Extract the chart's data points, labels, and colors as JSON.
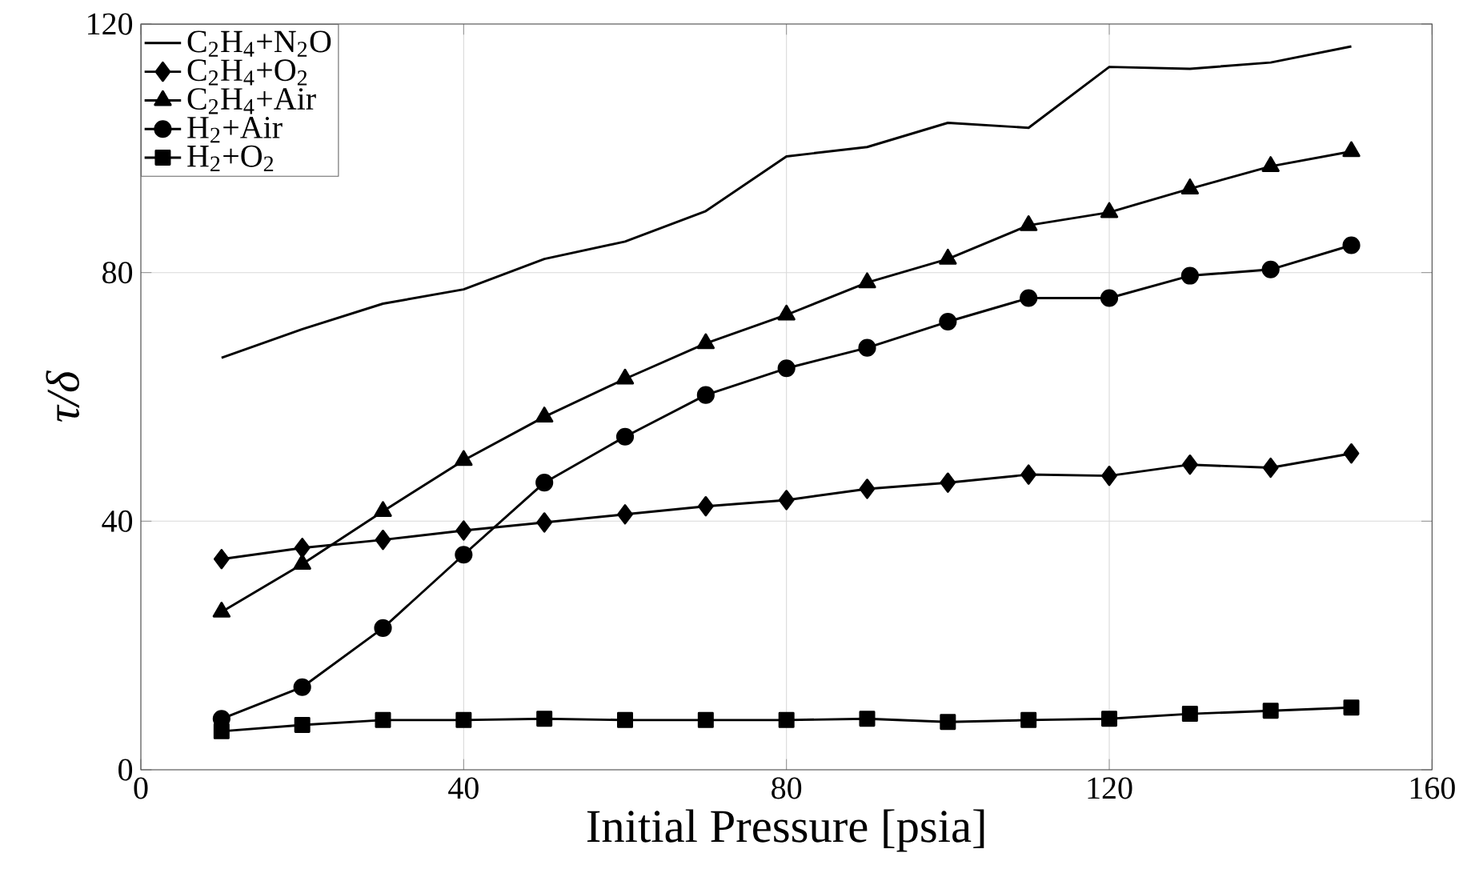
{
  "chart_data": {
    "type": "line",
    "xlabel": "Initial Pressure [psia]",
    "ylabel": "τ/δ",
    "x": [
      10,
      20,
      30,
      40,
      50,
      60,
      70,
      80,
      90,
      100,
      110,
      120,
      130,
      140,
      150
    ],
    "series": [
      {
        "name": "C$_{2}$H$_{4}$+N$_{2}$O",
        "color": "#000000",
        "marker": "none",
        "values": [
          66.3,
          70.9,
          75.0,
          77.3,
          82.2,
          85.0,
          89.9,
          98.7,
          100.2,
          104.1,
          103.3,
          113.1,
          112.8,
          113.8,
          116.4
        ]
      },
      {
        "name": "C$_{2}$H$_{4}$+O$_{2}$",
        "color": "#000000",
        "marker": "diamond",
        "values": [
          33.9,
          35.7,
          37.0,
          38.5,
          39.8,
          41.1,
          42.4,
          43.4,
          45.2,
          46.2,
          47.5,
          47.3,
          49.1,
          48.6,
          50.9
        ]
      },
      {
        "name": "C$_{2}$H$_{4}$+Air",
        "color": "#000000",
        "marker": "triangle",
        "values": [
          25.4,
          33.1,
          41.6,
          49.8,
          56.8,
          62.9,
          68.6,
          73.2,
          78.4,
          82.2,
          87.6,
          89.7,
          93.5,
          97.1,
          99.5
        ]
      },
      {
        "name": "H$_{2}$+Air",
        "color": "#000000",
        "marker": "circle",
        "values": [
          8.2,
          13.3,
          22.8,
          34.6,
          46.2,
          53.6,
          60.3,
          64.6,
          67.9,
          72.1,
          75.9,
          75.9,
          79.5,
          80.5,
          84.4
        ]
      },
      {
        "name": "H$_{2}$+O$_{2}$",
        "color": "#000000",
        "marker": "square",
        "values": [
          6.2,
          7.2,
          8.0,
          8.0,
          8.2,
          8.0,
          8.0,
          8.0,
          8.2,
          7.7,
          8.0,
          8.2,
          9.0,
          9.5,
          10.0
        ]
      }
    ],
    "xlim": [
      0,
      160
    ],
    "ylim": [
      0,
      120
    ],
    "xticks": [
      0,
      40,
      80,
      120,
      160
    ],
    "yticks": [
      0,
      40,
      80,
      120
    ],
    "grid": true,
    "legend": "top left",
    "line_style": "solid"
  }
}
